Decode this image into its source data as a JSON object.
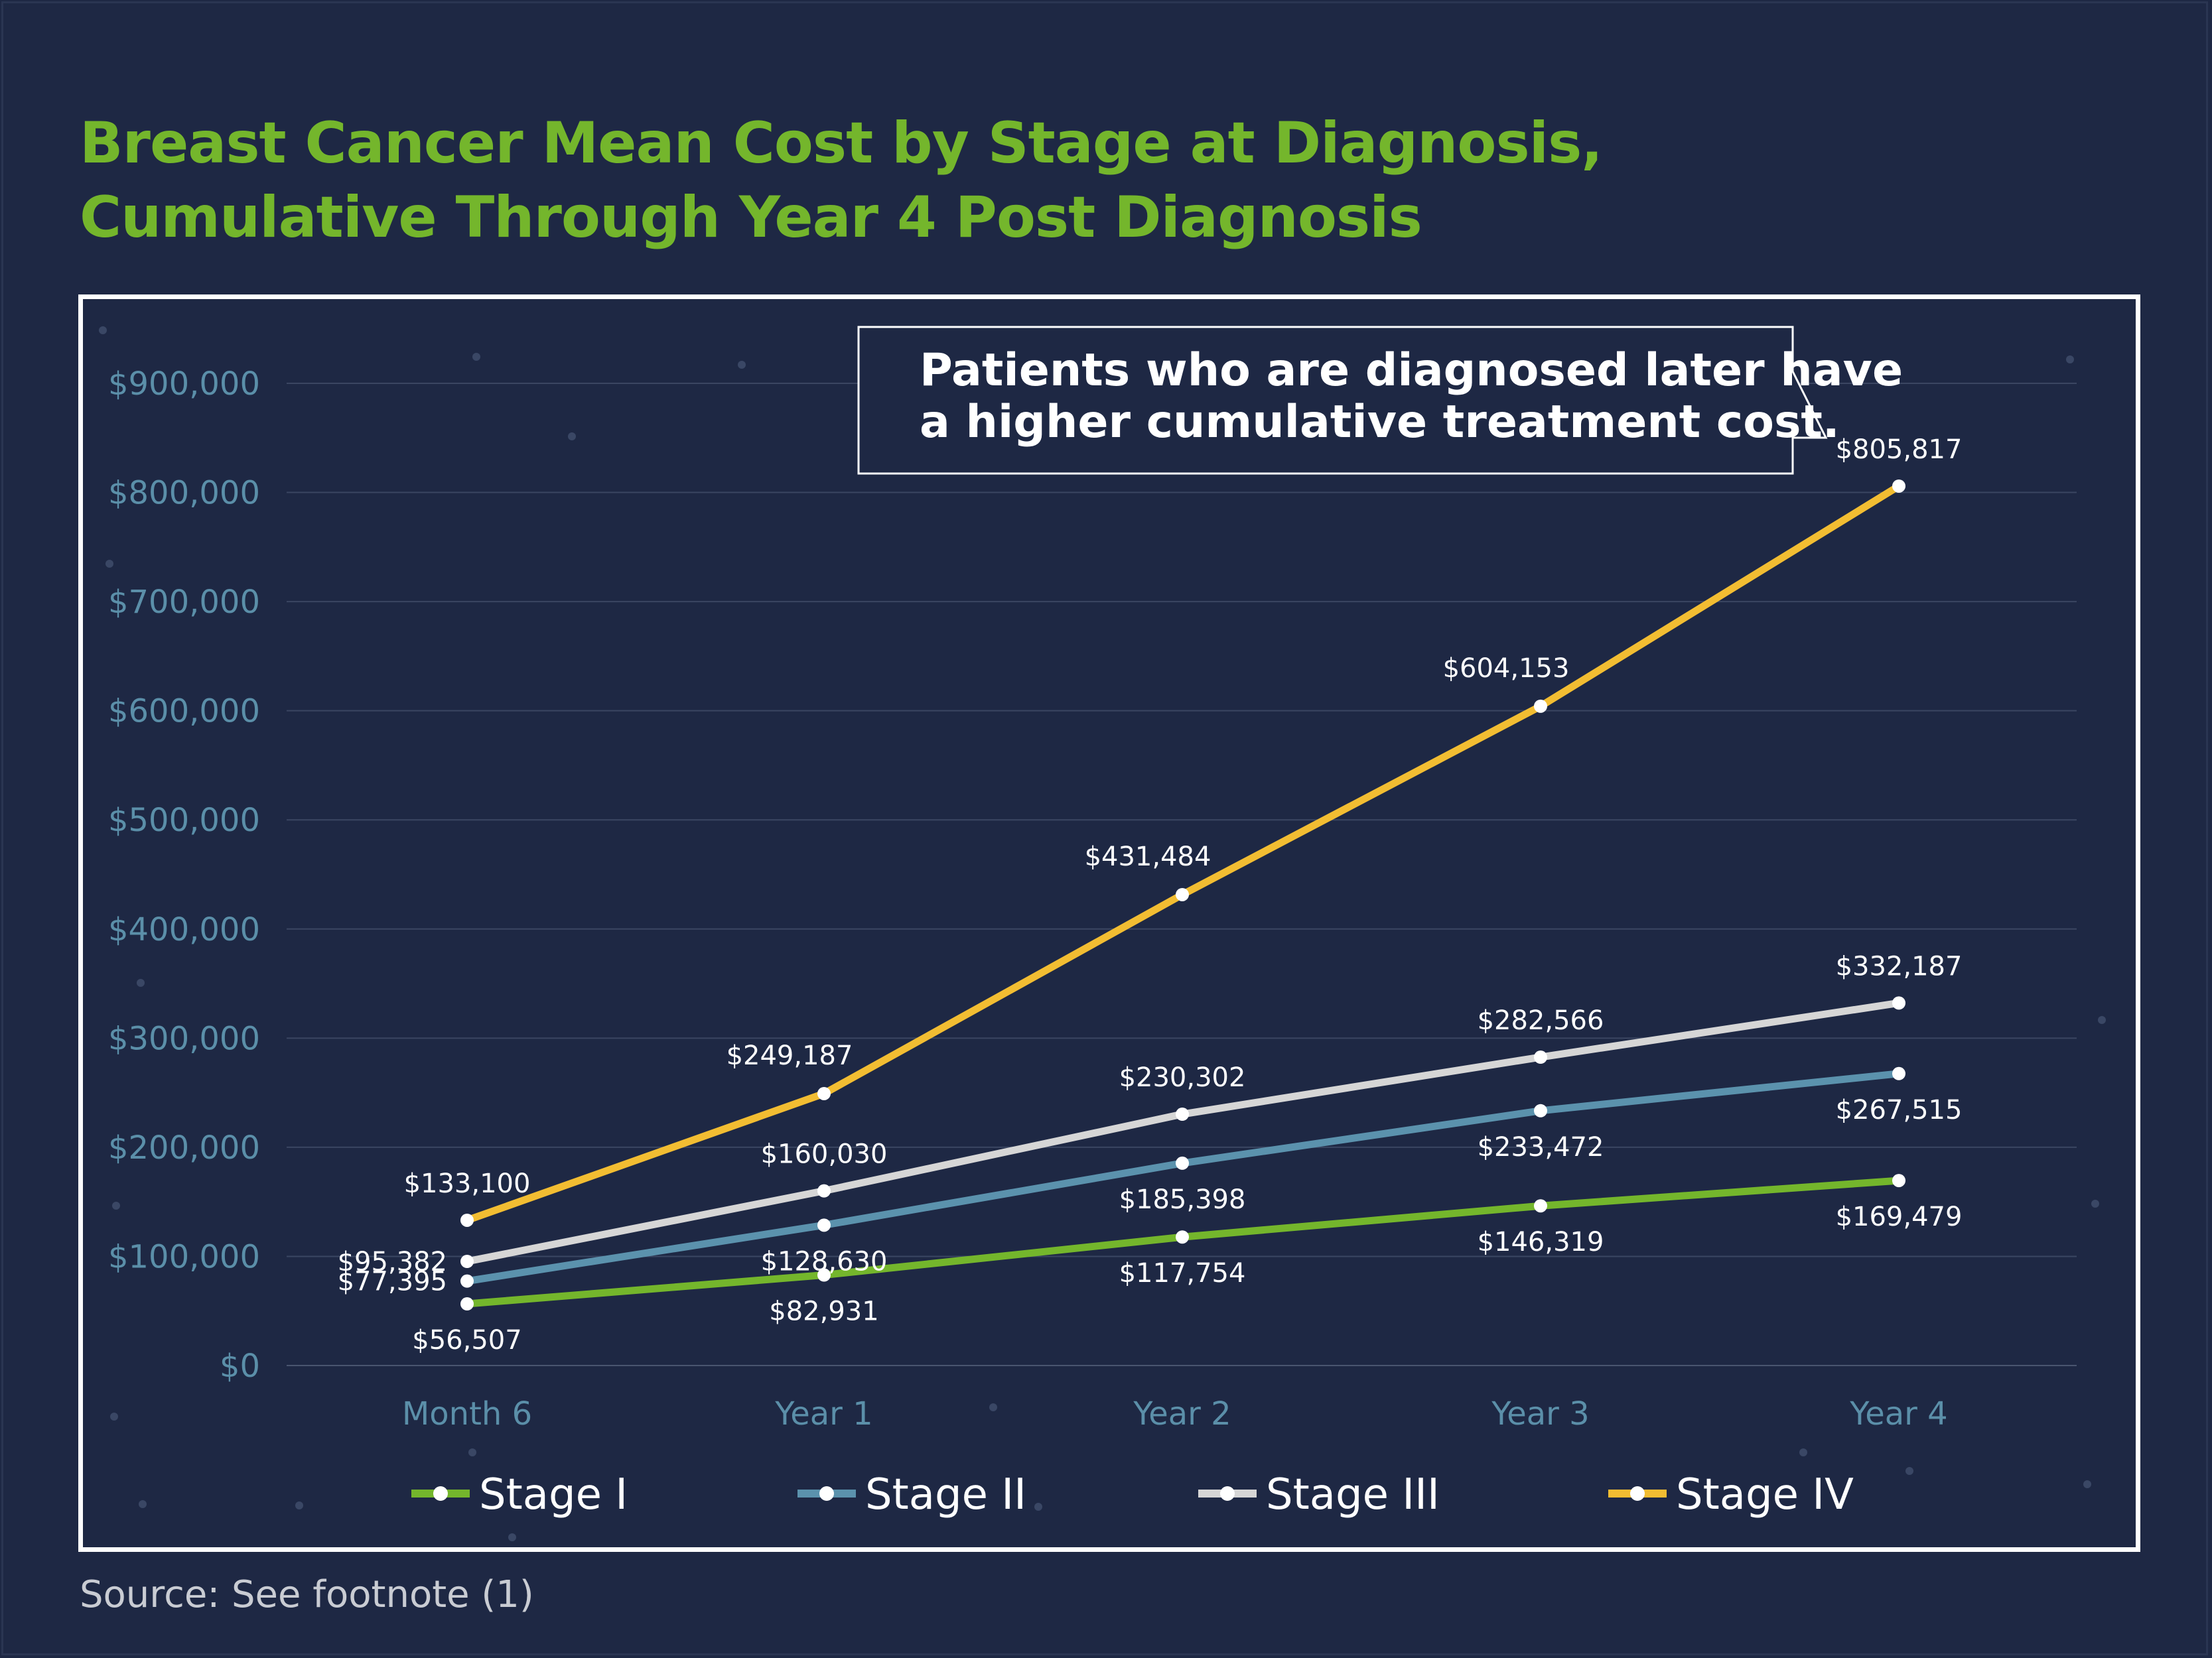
{
  "title_lines": [
    "Breast Cancer Mean Cost by Stage at Diagnosis,",
    "Cumulative Through Year 4 Post Diagnosis"
  ],
  "callout_lines": [
    "Patients who are diagnosed later have",
    "a higher cumulative treatment cost."
  ],
  "source": "Source: See footnote (1)",
  "colors": {
    "background": "#1e2844",
    "title": "#74b62c",
    "axis_text": "#5b8fa9",
    "gridline": "#3b4662"
  },
  "chart_data": {
    "type": "line",
    "title": "Breast Cancer Mean Cost by Stage at Diagnosis, Cumulative Through Year 4 Post Diagnosis",
    "xlabel": "",
    "ylabel": "",
    "categories": [
      "Month 6",
      "Year 1",
      "Year 2",
      "Year 3",
      "Year 4"
    ],
    "ylim": [
      0,
      900000
    ],
    "yticks": [
      0,
      100000,
      200000,
      300000,
      400000,
      500000,
      600000,
      700000,
      800000,
      900000
    ],
    "ytick_labels": [
      "$0",
      "$100,000",
      "$200,000",
      "$300,000",
      "$400,000",
      "$500,000",
      "$600,000",
      "$700,000",
      "$800,000",
      "$900,000"
    ],
    "grid": true,
    "legend_position": "bottom",
    "series": [
      {
        "name": "Stage I",
        "color": "#74b62c",
        "values": [
          56507,
          82931,
          117754,
          146319,
          169479
        ],
        "labels": [
          "$56,507",
          "$82,931",
          "$117,754",
          "$146,319",
          "$169,479"
        ],
        "label_pos": [
          "below",
          "below",
          "below",
          "below",
          "below"
        ]
      },
      {
        "name": "Stage II",
        "color": "#5b92ad",
        "values": [
          77395,
          128630,
          185398,
          233472,
          267515
        ],
        "labels": [
          "$77,395",
          "$128,630",
          "$185,398",
          "$233,472",
          "$267,515"
        ],
        "label_pos": [
          "left",
          "below",
          "below",
          "below",
          "below"
        ]
      },
      {
        "name": "Stage III",
        "color": "#d6d6d6",
        "values": [
          95382,
          160030,
          230302,
          282566,
          332187
        ],
        "labels": [
          "$95,382",
          "$160,030",
          "$230,302",
          "$282,566",
          "$332,187"
        ],
        "label_pos": [
          "left",
          "above",
          "above",
          "above",
          "above"
        ]
      },
      {
        "name": "Stage IV",
        "color": "#f2bd32",
        "values": [
          133100,
          249187,
          431484,
          604153,
          805817
        ],
        "labels": [
          "$133,100",
          "$249,187",
          "$431,484",
          "$604,153",
          "$805,817"
        ],
        "label_pos": [
          "above",
          "above-left",
          "above-left",
          "above-left",
          "above"
        ]
      }
    ],
    "annotation": "Patients who are diagnosed later have a higher cumulative treatment cost."
  }
}
